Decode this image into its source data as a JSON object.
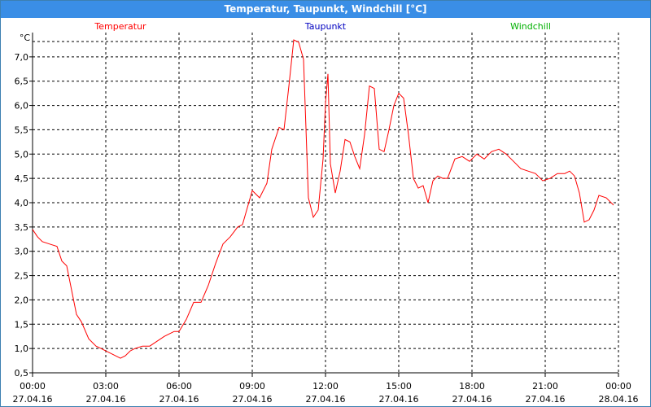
{
  "window": {
    "title": "Temperatur, Taupunkt, Windchill [°C]"
  },
  "chart_data": {
    "type": "line",
    "title": "Temperatur, Taupunkt, Windchill [°C]",
    "ylabel": "°C",
    "ylim": [
      0.5,
      7.5
    ],
    "xlim": [
      0,
      24
    ],
    "grid": true,
    "legend": [
      {
        "name": "Temperatur",
        "color": "#ff0000"
      },
      {
        "name": "Taupunkt",
        "color": "#0000c0"
      },
      {
        "name": "Windchill",
        "color": "#00b000"
      }
    ],
    "y_ticks": [
      "0,5",
      "1,0",
      "1,5",
      "2,0",
      "2,5",
      "3,0",
      "3,5",
      "4,0",
      "4,5",
      "5,0",
      "5,5",
      "6,0",
      "6,5",
      "7,0"
    ],
    "x_ticks": [
      {
        "time": "00:00",
        "date": "27.04.16"
      },
      {
        "time": "03:00",
        "date": "27.04.16"
      },
      {
        "time": "06:00",
        "date": "27.04.16"
      },
      {
        "time": "09:00",
        "date": "27.04.16"
      },
      {
        "time": "12:00",
        "date": "27.04.16"
      },
      {
        "time": "15:00",
        "date": "27.04.16"
      },
      {
        "time": "18:00",
        "date": "27.04.16"
      },
      {
        "time": "21:00",
        "date": "27.04.16"
      },
      {
        "time": "00:00",
        "date": "28.04.16"
      }
    ],
    "series": [
      {
        "name": "Temperatur",
        "color": "#ff0000",
        "x": [
          0,
          0.2,
          0.4,
          0.7,
          1.0,
          1.2,
          1.4,
          1.6,
          1.8,
          2.0,
          2.3,
          2.6,
          2.8,
          3.0,
          3.2,
          3.4,
          3.6,
          3.8,
          4.0,
          4.2,
          4.5,
          4.8,
          5.1,
          5.4,
          5.6,
          5.8,
          6.0,
          6.3,
          6.6,
          6.9,
          7.2,
          7.5,
          7.8,
          8.1,
          8.4,
          8.6,
          8.8,
          9.0,
          9.3,
          9.6,
          9.8,
          10.1,
          10.3,
          10.5,
          10.7,
          10.9,
          11.1,
          11.3,
          11.5,
          11.7,
          11.9,
          12.0,
          12.1,
          12.2,
          12.4,
          12.6,
          12.8,
          13.0,
          13.2,
          13.4,
          13.6,
          13.8,
          14.0,
          14.2,
          14.4,
          14.6,
          14.8,
          15.0,
          15.2,
          15.4,
          15.6,
          15.8,
          16.0,
          16.2,
          16.4,
          16.6,
          16.8,
          17.0,
          17.3,
          17.6,
          17.9,
          18.2,
          18.5,
          18.8,
          19.1,
          19.4,
          19.7,
          20.0,
          20.3,
          20.6,
          20.9,
          21.2,
          21.5,
          21.8,
          22.0,
          22.2,
          22.4,
          22.6,
          22.8,
          23.0,
          23.2,
          23.5,
          23.8
        ],
        "y": [
          3.45,
          3.3,
          3.2,
          3.15,
          3.1,
          2.8,
          2.7,
          2.2,
          1.7,
          1.55,
          1.2,
          1.05,
          1.0,
          0.95,
          0.9,
          0.85,
          0.8,
          0.85,
          0.95,
          1.0,
          1.05,
          1.05,
          1.15,
          1.25,
          1.3,
          1.35,
          1.35,
          1.6,
          1.95,
          1.95,
          2.3,
          2.75,
          3.15,
          3.3,
          3.5,
          3.55,
          3.9,
          4.25,
          4.1,
          4.4,
          5.1,
          5.55,
          5.5,
          6.4,
          7.35,
          7.3,
          6.95,
          4.1,
          3.7,
          3.85,
          4.9,
          6.05,
          6.65,
          4.8,
          4.2,
          4.65,
          5.3,
          5.25,
          4.95,
          4.7,
          5.4,
          6.4,
          6.35,
          5.1,
          5.05,
          5.5,
          6.0,
          6.25,
          6.15,
          5.4,
          4.5,
          4.3,
          4.35,
          4.0,
          4.45,
          4.55,
          4.5,
          4.5,
          4.9,
          4.95,
          4.85,
          5.0,
          4.9,
          5.05,
          5.1,
          5.0,
          4.85,
          4.7,
          4.65,
          4.6,
          4.45,
          4.5,
          4.6,
          4.6,
          4.65,
          4.55,
          4.2,
          3.6,
          3.65,
          3.85,
          4.15,
          4.1,
          3.95
        ]
      }
    ]
  }
}
